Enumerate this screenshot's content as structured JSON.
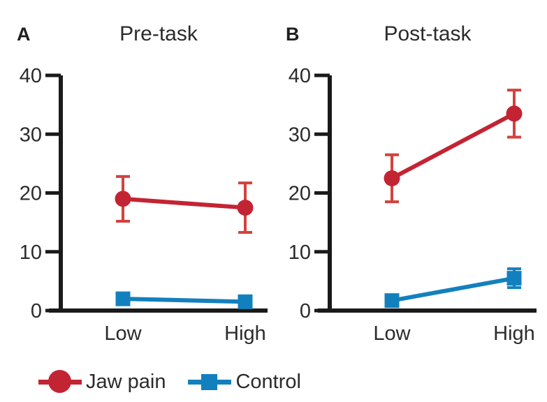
{
  "colors": {
    "axis": "#1a1a1a",
    "text": "#2b2b2b",
    "jaw_pain": "#c32433",
    "jaw_pain_error": "#d2423e",
    "control": "#1380be"
  },
  "legend": {
    "items": [
      {
        "label": "Jaw pain",
        "marker": "circle",
        "color": "#c32433"
      },
      {
        "label": "Control",
        "marker": "square",
        "color": "#1380be"
      }
    ]
  },
  "chart_data": [
    {
      "type": "line",
      "panel_label": "A",
      "title": "Pre-task",
      "categories": [
        "Low",
        "High"
      ],
      "xlabel": "",
      "ylabel": "",
      "ylim": [
        0,
        40
      ],
      "yticks": [
        0,
        10,
        20,
        30,
        40
      ],
      "grid": false,
      "legend_position": "shared-bottom-left",
      "series": [
        {
          "name": "Jaw pain",
          "marker": "circle",
          "color": "#c32433",
          "error_color": "#d2423e",
          "values": [
            19,
            17.5
          ],
          "errors": [
            3.8,
            4.2
          ]
        },
        {
          "name": "Control",
          "marker": "square",
          "color": "#1380be",
          "error_color": "#1380be",
          "values": [
            2,
            1.5
          ],
          "errors": [
            0,
            0
          ]
        }
      ]
    },
    {
      "type": "line",
      "panel_label": "B",
      "title": "Post-task",
      "categories": [
        "Low",
        "High"
      ],
      "xlabel": "",
      "ylabel": "",
      "ylim": [
        0,
        40
      ],
      "yticks": [
        0,
        10,
        20,
        30,
        40
      ],
      "grid": false,
      "legend_position": "shared-bottom-left",
      "series": [
        {
          "name": "Jaw pain",
          "marker": "circle",
          "color": "#c32433",
          "error_color": "#d2423e",
          "values": [
            22.5,
            33.5
          ],
          "errors": [
            4,
            4
          ]
        },
        {
          "name": "Control",
          "marker": "square",
          "color": "#1380be",
          "error_color": "#1380be",
          "values": [
            1.7,
            5.5
          ],
          "errors": [
            0,
            1.6
          ]
        }
      ]
    }
  ]
}
